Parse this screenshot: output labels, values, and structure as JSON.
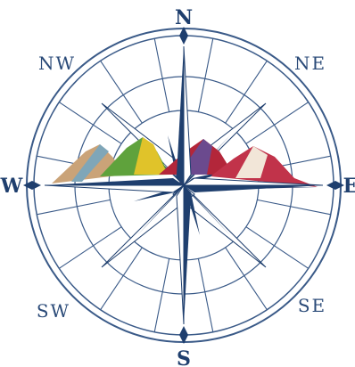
{
  "compass": {
    "labels": {
      "north": "N",
      "south": "S",
      "east": "E",
      "west": "W",
      "northeast": "NE",
      "northwest": "NW",
      "southeast": "SE",
      "southwest": "SW"
    },
    "colors": {
      "primary_blue": "#1f3f6e",
      "line_blue": "#3a5a88",
      "point_light": "#ffffff",
      "point_dark": "#1f3f6e"
    },
    "mountains": {
      "colors": [
        "#c9a27a",
        "#5fa23c",
        "#e0c32a",
        "#b3263a",
        "#6b4a8e",
        "#f2e6d8"
      ]
    }
  }
}
